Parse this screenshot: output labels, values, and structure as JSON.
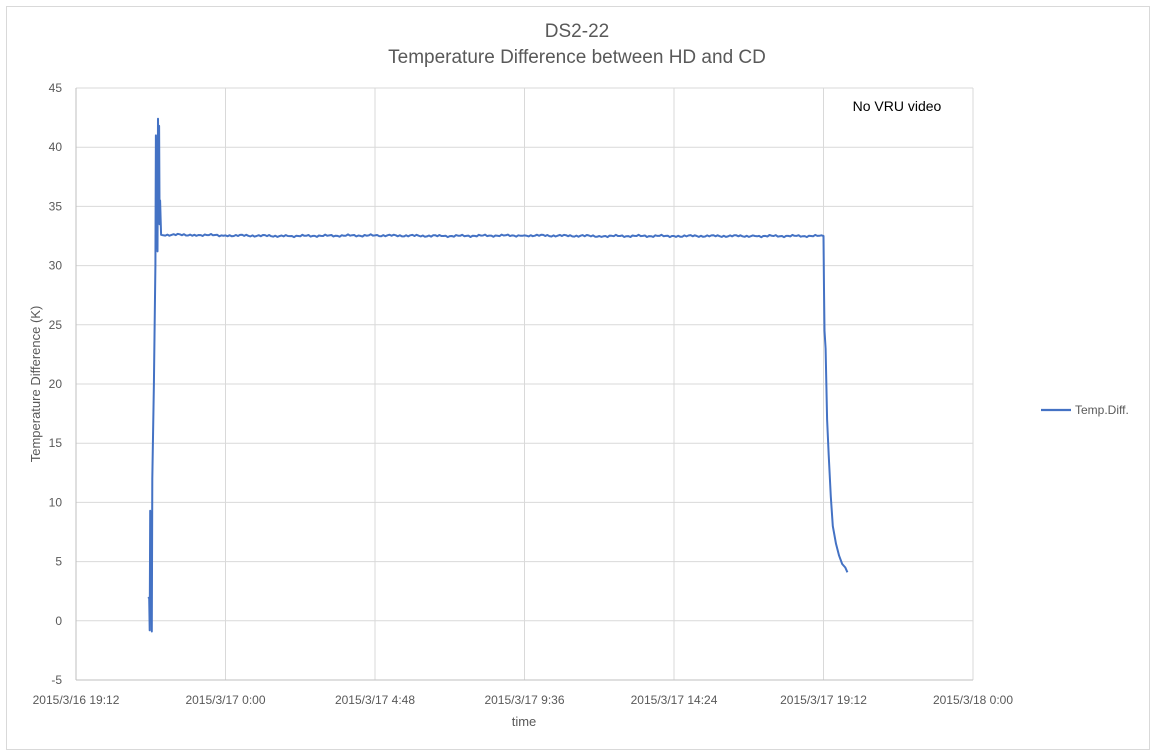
{
  "chart_data": {
    "type": "line",
    "title": "DS2-22",
    "subtitle": "Temperature Difference between HD and CD",
    "xlabel": "time",
    "ylabel": "Temperature Difference (K)",
    "ylim": [
      -5,
      45
    ],
    "y_ticks": [
      "-5",
      "0",
      "5",
      "10",
      "15",
      "20",
      "25",
      "30",
      "35",
      "40",
      "45"
    ],
    "x_ticks": [
      "2015/3/16 19:12",
      "2015/3/17 0:00",
      "2015/3/17 4:48",
      "2015/3/17 9:36",
      "2015/3/17 14:24",
      "2015/3/17 19:12",
      "2015/3/18 0:00"
    ],
    "xlim": [
      "2015/3/16 19:12",
      "2015/3/18 0:00"
    ],
    "grid": true,
    "legend_position": "right",
    "annotation": "No VRU video",
    "series": [
      {
        "name": "Temp.Diff.",
        "color": "#4472c4",
        "points": [
          [
            "2015/3/16 21:31",
            2.0
          ],
          [
            "2015/3/16 21:33",
            1.9
          ],
          [
            "2015/3/16 21:34",
            -0.8
          ],
          [
            "2015/3/16 21:35",
            9.3
          ],
          [
            "2015/3/16 21:36",
            7.8
          ],
          [
            "2015/3/16 21:37",
            9.0
          ],
          [
            "2015/3/16 21:38",
            -0.9
          ],
          [
            "2015/3/16 21:39",
            12.0
          ],
          [
            "2015/3/16 21:42",
            20.0
          ],
          [
            "2015/3/16 21:45",
            30.0
          ],
          [
            "2015/3/16 21:46",
            41.0
          ],
          [
            "2015/3/16 21:47",
            31.5
          ],
          [
            "2015/3/16 21:48",
            40.5
          ],
          [
            "2015/3/16 21:49",
            31.2
          ],
          [
            "2015/3/16 21:50",
            42.4
          ],
          [
            "2015/3/16 21:51",
            38.0
          ],
          [
            "2015/3/16 21:52",
            41.8
          ],
          [
            "2015/3/16 21:53",
            33.5
          ],
          [
            "2015/3/16 21:54",
            35.5
          ],
          [
            "2015/3/16 21:55",
            34.0
          ],
          [
            "2015/3/16 21:56",
            32.6
          ],
          [
            "2015/3/16 23:00",
            32.6
          ],
          [
            "2015/3/17 0:00",
            32.55
          ],
          [
            "2015/3/17 2:00",
            32.5
          ],
          [
            "2015/3/17 4:48",
            32.55
          ],
          [
            "2015/3/17 7:00",
            32.5
          ],
          [
            "2015/3/17 9:36",
            32.55
          ],
          [
            "2015/3/17 12:00",
            32.5
          ],
          [
            "2015/3/17 14:24",
            32.5
          ],
          [
            "2015/3/17 17:00",
            32.5
          ],
          [
            "2015/3/17 19:12",
            32.5
          ],
          [
            "2015/3/17 19:13",
            28.0
          ],
          [
            "2015/3/17 19:14",
            24.5
          ],
          [
            "2015/3/17 19:16",
            23.0
          ],
          [
            "2015/3/17 19:19",
            17.0
          ],
          [
            "2015/3/17 19:22",
            14.0
          ],
          [
            "2015/3/17 19:26",
            10.5
          ],
          [
            "2015/3/17 19:30",
            8.0
          ],
          [
            "2015/3/17 19:36",
            6.5
          ],
          [
            "2015/3/17 19:42",
            5.5
          ],
          [
            "2015/3/17 19:48",
            4.8
          ],
          [
            "2015/3/17 19:54",
            4.5
          ],
          [
            "2015/3/17 19:58",
            4.1
          ]
        ]
      }
    ]
  }
}
